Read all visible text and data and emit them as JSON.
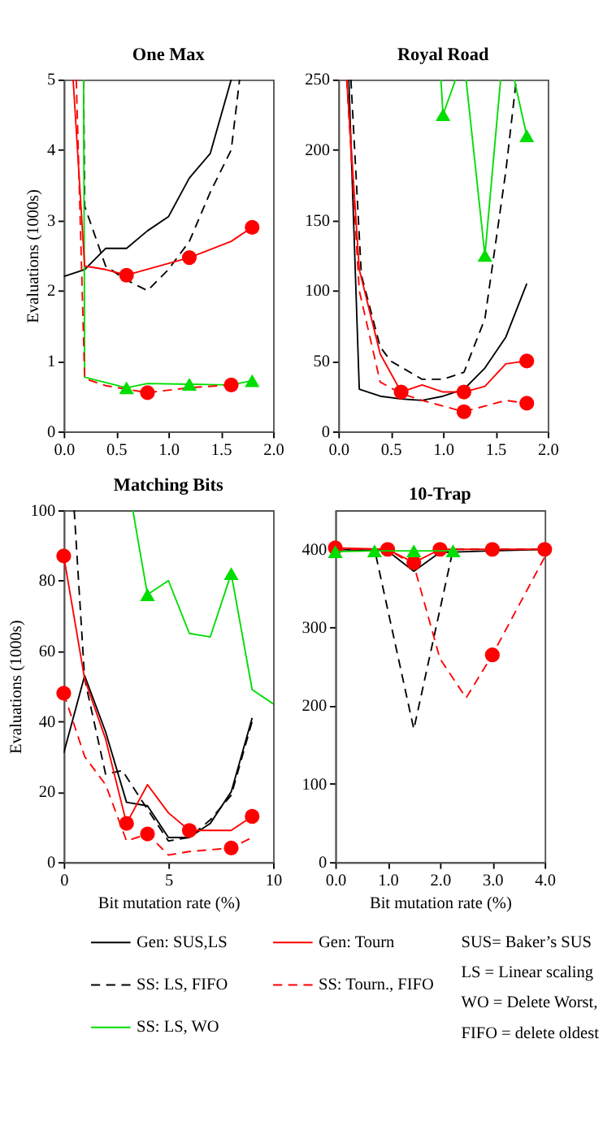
{
  "chart_data": [
    {
      "type": "line",
      "title": "One Max",
      "ylabel": "Evaluations (1000s)",
      "xlim": [
        0,
        2
      ],
      "ylim": [
        0,
        5
      ],
      "xticks": [
        {
          "value": 0,
          "label": "0.0"
        },
        {
          "value": 0.5,
          "label": "0.5"
        },
        {
          "value": 1,
          "label": "1.0"
        },
        {
          "value": 1.5,
          "label": "1.5"
        },
        {
          "value": 2,
          "label": "2.0"
        }
      ],
      "yticks": [
        0,
        1,
        2,
        3,
        4,
        5
      ],
      "grid": false,
      "series": [
        {
          "type": "line",
          "color": "#000000",
          "line_style": "solid",
          "x": [
            0,
            0.2,
            0.4,
            0.6,
            0.8,
            1.0,
            1.2,
            1.4,
            1.6
          ],
          "values": [
            2.2,
            2.3,
            2.6,
            2.6,
            2.85,
            3.05,
            3.6,
            3.95,
            5
          ]
        },
        {
          "type": "line",
          "color": "#000000",
          "line_style": "dashed",
          "x": [
            0.19,
            0.2,
            0.4,
            0.6,
            0.8,
            1.0,
            1.2,
            1.4,
            1.6,
            1.68
          ],
          "values": [
            5,
            3.2,
            2.35,
            2.15,
            2.0,
            2.3,
            2.7,
            3.4,
            4.0,
            5
          ]
        },
        {
          "type": "line",
          "color": "#00dd00",
          "line_style": "solid",
          "x": [
            0.19,
            0.2,
            0.6,
            0.8,
            1.2,
            1.6,
            1.8
          ],
          "values": [
            5,
            0.77,
            0.62,
            0.68,
            0.67,
            0.66,
            0.72
          ]
        },
        {
          "type": "line",
          "color": "#ff0000",
          "line_style": "solid",
          "x": [
            0.09,
            0.2,
            0.4,
            0.6,
            1.2,
            1.6,
            1.8
          ],
          "values": [
            5,
            2.35,
            2.3,
            2.22,
            2.47,
            2.7,
            2.9
          ]
        },
        {
          "type": "line",
          "color": "#ff0000",
          "line_style": "dashed",
          "x": [
            0.12,
            0.2,
            0.4,
            0.6,
            0.8,
            1.2,
            1.6
          ],
          "values": [
            5,
            0.75,
            0.65,
            0.6,
            0.55,
            0.62,
            0.66
          ]
        },
        {
          "type": "scatter",
          "color": "#00dd00",
          "marker": "triangle",
          "x": [
            0.6,
            1.2,
            1.8
          ],
          "values": [
            0.62,
            0.67,
            0.72
          ]
        },
        {
          "type": "scatter",
          "color": "#ff0000",
          "marker": "circle",
          "x": [
            0.6,
            1.2,
            1.8
          ],
          "values": [
            2.22,
            2.47,
            2.9
          ]
        },
        {
          "type": "scatter",
          "color": "#ff0000",
          "marker": "circle",
          "x": [
            0.8,
            1.6
          ],
          "values": [
            0.55,
            0.66
          ]
        }
      ]
    },
    {
      "type": "line",
      "title": "Royal Road",
      "xlim": [
        0,
        2
      ],
      "ylim": [
        0,
        250
      ],
      "xticks": [
        {
          "value": 0,
          "label": "0.0"
        },
        {
          "value": 0.5,
          "label": "0.5"
        },
        {
          "value": 1,
          "label": "1.0"
        },
        {
          "value": 1.5,
          "label": "1.5"
        },
        {
          "value": 2,
          "label": "2.0"
        }
      ],
      "yticks": [
        0,
        50,
        100,
        150,
        200,
        250
      ],
      "grid": false,
      "series": [
        {
          "type": "line",
          "color": "#000000",
          "line_style": "solid",
          "x": [
            0.1,
            0.2,
            0.4,
            0.6,
            0.8,
            1.0,
            1.2,
            1.4,
            1.6,
            1.8
          ],
          "values": [
            250,
            30,
            25,
            23,
            22,
            25,
            30,
            45,
            67,
            105
          ]
        },
        {
          "type": "line",
          "color": "#000000",
          "line_style": "dashed",
          "x": [
            0.12,
            0.22,
            0.4,
            0.5,
            0.8,
            1.0,
            1.2,
            1.4,
            1.6,
            1.7
          ],
          "values": [
            250,
            111,
            60,
            50,
            37,
            37,
            42,
            80,
            185,
            250
          ]
        },
        {
          "type": "line",
          "color": "#00dd00",
          "line_style": "solid",
          "x": [
            0.98,
            1.0,
            1.12,
            1.17,
            1.22,
            1.4,
            1.55,
            1.62,
            1.68,
            1.8
          ],
          "values": [
            250,
            225,
            250,
            null,
            250,
            125,
            250,
            null,
            250,
            210
          ]
        },
        {
          "type": "line",
          "color": "#ff0000",
          "line_style": "solid",
          "x": [
            0.08,
            0.2,
            0.4,
            0.6,
            0.8,
            1.0,
            1.2,
            1.4,
            1.6,
            1.8
          ],
          "values": [
            250,
            115,
            55,
            28,
            33,
            28,
            28,
            32,
            48,
            50
          ]
        },
        {
          "type": "line",
          "color": "#ff0000",
          "line_style": "dashed",
          "x": [
            0.08,
            0.2,
            0.4,
            0.6,
            0.8,
            1.0,
            1.2,
            1.4,
            1.6,
            1.8
          ],
          "values": [
            250,
            100,
            35,
            27,
            22,
            18,
            14,
            18,
            22,
            20
          ]
        },
        {
          "type": "scatter",
          "color": "#00dd00",
          "marker": "triangle",
          "x": [
            1.0,
            1.4,
            1.8
          ],
          "values": [
            225,
            125,
            210
          ]
        },
        {
          "type": "scatter",
          "color": "#ff0000",
          "marker": "circle",
          "x": [
            0.6,
            1.2,
            1.8
          ],
          "values": [
            28,
            28,
            50
          ]
        },
        {
          "type": "scatter",
          "color": "#ff0000",
          "marker": "circle",
          "x": [
            1.2,
            1.8
          ],
          "values": [
            14,
            20
          ]
        }
      ]
    },
    {
      "type": "line",
      "title": "Matching Bits",
      "xlabel": "Bit mutation rate (%)",
      "ylabel": "Evaluations (1000s)",
      "xlim": [
        0,
        10
      ],
      "ylim": [
        0,
        100
      ],
      "xticks": [
        0,
        5,
        10
      ],
      "yticks": [
        0,
        20,
        40,
        60,
        80,
        100
      ],
      "grid": false,
      "series": [
        {
          "type": "line",
          "color": "#000000",
          "line_style": "solid",
          "x": [
            0,
            1,
            2,
            3,
            4,
            5,
            6,
            7,
            8,
            9
          ],
          "values": [
            31,
            53,
            37,
            17,
            16,
            7,
            7,
            11,
            20,
            41
          ]
        },
        {
          "type": "line",
          "color": "#000000",
          "line_style": "dashed",
          "x": [
            0.5,
            1,
            2,
            2.8,
            4,
            5,
            6,
            7,
            8,
            9
          ],
          "values": [
            100,
            52,
            25,
            26,
            15,
            6,
            7,
            12,
            19,
            40
          ]
        },
        {
          "type": "line",
          "color": "#00dd00",
          "line_style": "solid",
          "x": [
            3.3,
            4,
            5,
            6,
            7,
            8,
            9,
            10
          ],
          "values": [
            100,
            76,
            80,
            65,
            64,
            82,
            49,
            45
          ]
        },
        {
          "type": "line",
          "color": "#ff0000",
          "line_style": "solid",
          "x": [
            0,
            1,
            2,
            3,
            4,
            5,
            6,
            7,
            8,
            9
          ],
          "values": [
            87,
            52,
            35,
            11,
            22,
            14,
            9,
            9,
            9,
            13
          ]
        },
        {
          "type": "line",
          "color": "#ff0000",
          "line_style": "dashed",
          "x": [
            0,
            1,
            2,
            3,
            4,
            5,
            6,
            8,
            9
          ],
          "values": [
            48,
            30,
            22,
            6,
            8,
            2,
            3,
            4,
            7
          ]
        },
        {
          "type": "scatter",
          "color": "#00dd00",
          "marker": "triangle",
          "x": [
            4,
            8
          ],
          "values": [
            76,
            82
          ]
        },
        {
          "type": "scatter",
          "color": "#ff0000",
          "marker": "circle",
          "x": [
            0,
            3,
            6,
            9
          ],
          "values": [
            87,
            11,
            9,
            13
          ]
        },
        {
          "type": "scatter",
          "color": "#ff0000",
          "marker": "circle",
          "x": [
            0,
            4,
            8
          ],
          "values": [
            48,
            8,
            4
          ]
        }
      ]
    },
    {
      "type": "line",
      "title": "10-Trap",
      "xlabel": "Bit mutation rate (%)",
      "xlim": [
        0,
        4
      ],
      "ylim": [
        0,
        450
      ],
      "xticks": [
        {
          "value": 0,
          "label": "0.0"
        },
        {
          "value": 1,
          "label": "1.0"
        },
        {
          "value": 2,
          "label": "2.0"
        },
        {
          "value": 3,
          "label": "3.0"
        },
        {
          "value": 4,
          "label": "4.0"
        }
      ],
      "yticks": [
        0,
        100,
        200,
        300,
        400
      ],
      "grid": false,
      "legend": "bottom",
      "annotations": [
        "SUS= Baker’s SUS",
        "LS = Linear scaling",
        "WO = Delete Worst,",
        "FIFO = delete oldest"
      ],
      "series": [
        {
          "type": "line",
          "name": "Gen: SUS,LS",
          "color": "#000000",
          "line_style": "solid",
          "x": [
            0,
            1,
            1.5,
            2,
            3,
            4
          ],
          "values": [
            400,
            398,
            372,
            396,
            398,
            400
          ]
        },
        {
          "type": "line",
          "name": "SS: LS, FIFO",
          "color": "#000000",
          "line_style": "dashed",
          "x": [
            0,
            0.75,
            1.5,
            2.25,
            3,
            4
          ],
          "values": [
            400,
            400,
            170,
            400,
            400,
            400
          ]
        },
        {
          "name": "SS: Tourn., FIFO",
          "color": "#ff0000",
          "line_style": "dashed",
          "x": [
            0,
            1,
            1.5,
            2,
            2.5,
            3,
            4
          ],
          "values": [
            400,
            400,
            380,
            260,
            210,
            265,
            390
          ]
        },
        {
          "type": "scatter",
          "color": "#ff0000",
          "marker": "circle",
          "x": [
            3
          ],
          "values": [
            265
          ]
        },
        {
          "name": "Gen: Tourn",
          "color": "#ff0000",
          "line_style": "solid",
          "marker": "circle",
          "x": [
            0,
            1,
            1.5,
            2,
            3,
            4
          ],
          "values": [
            402,
            400,
            383,
            400,
            400,
            400
          ]
        },
        {
          "name": "SS: LS, WO",
          "color": "#00dd00",
          "line_style": "solid",
          "marker": "triangle",
          "x": [
            0,
            0.75,
            1.5,
            2.25
          ],
          "values": [
            397,
            398,
            398,
            398
          ]
        }
      ]
    }
  ]
}
